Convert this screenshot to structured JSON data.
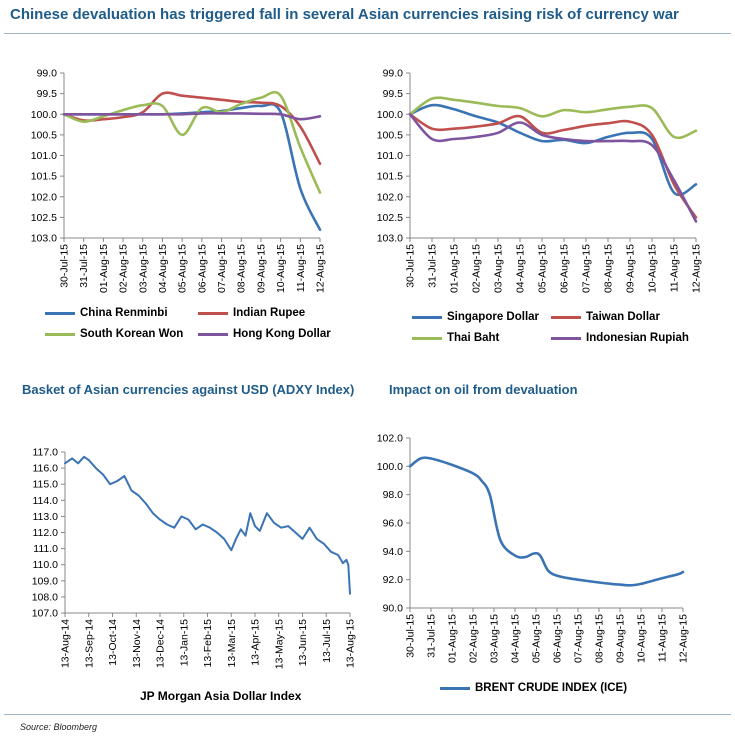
{
  "header": {
    "title": "Chinese devaluation has triggered fall in several Asian currencies raising risk of currency war"
  },
  "source": "Source: Bloomberg",
  "colors": {
    "blue": "#3a74b5",
    "red": "#c0504d",
    "green": "#9bbb59",
    "purple": "#7f549e",
    "title": "#1f5c8a"
  },
  "chart_data": [
    {
      "id": "asian-fx-1",
      "type": "line",
      "title": "",
      "y_inverted": true,
      "ylim": [
        99.0,
        103.0
      ],
      "yticks": [
        "99.0",
        "99.5",
        "100.0",
        "100.5",
        "101.0",
        "101.5",
        "102.0",
        "102.5",
        "103.0"
      ],
      "categories": [
        "30-Jul-15",
        "31-Jul-15",
        "01-Aug-15",
        "02-Aug-15",
        "03-Aug-15",
        "04-Aug-15",
        "05-Aug-15",
        "06-Aug-15",
        "07-Aug-15",
        "08-Aug-15",
        "09-Aug-15",
        "10-Aug-15",
        "11-Aug-15",
        "12-Aug-15"
      ],
      "series": [
        {
          "name": "China Renminbi",
          "color": "#3a74b5",
          "values": [
            100.0,
            100.0,
            100.0,
            100.0,
            100.0,
            100.0,
            99.98,
            99.95,
            99.92,
            99.85,
            99.8,
            99.95,
            101.8,
            102.8
          ]
        },
        {
          "name": "Indian Rupee",
          "color": "#c0504d",
          "values": [
            100.0,
            100.15,
            100.12,
            100.07,
            99.95,
            99.5,
            99.55,
            99.6,
            99.65,
            99.7,
            99.72,
            99.8,
            100.3,
            101.2
          ]
        },
        {
          "name": "South Korean Won",
          "color": "#9bbb59",
          "values": [
            100.0,
            100.18,
            100.05,
            99.9,
            99.78,
            99.8,
            100.5,
            99.85,
            99.95,
            99.75,
            99.6,
            99.55,
            100.8,
            101.9
          ]
        },
        {
          "name": "Hong Kong Dollar",
          "color": "#7f549e",
          "values": [
            100.0,
            100.0,
            100.0,
            100.0,
            100.0,
            100.0,
            100.0,
            99.98,
            99.98,
            99.98,
            99.99,
            100.0,
            100.12,
            100.05
          ]
        }
      ]
    },
    {
      "id": "asian-fx-2",
      "type": "line",
      "title": "",
      "y_inverted": true,
      "ylim": [
        99.0,
        103.0
      ],
      "yticks": [
        "99.0",
        "99.5",
        "100.0",
        "100.5",
        "101.0",
        "101.5",
        "102.0",
        "102.5",
        "103.0"
      ],
      "categories": [
        "30-Jul-15",
        "31-Jul-15",
        "01-Aug-15",
        "02-Aug-15",
        "03-Aug-15",
        "04-Aug-15",
        "05-Aug-15",
        "06-Aug-15",
        "07-Aug-15",
        "08-Aug-15",
        "09-Aug-15",
        "10-Aug-15",
        "11-Aug-15",
        "12-Aug-15"
      ],
      "series": [
        {
          "name": "Singapore Dollar",
          "color": "#3a74b5",
          "values": [
            100.0,
            99.78,
            99.88,
            100.05,
            100.2,
            100.45,
            100.65,
            100.62,
            100.7,
            100.55,
            100.45,
            100.6,
            101.9,
            101.7
          ]
        },
        {
          "name": "Taiwan Dollar",
          "color": "#c0504d",
          "values": [
            100.0,
            100.35,
            100.35,
            100.3,
            100.22,
            100.05,
            100.45,
            100.38,
            100.28,
            100.22,
            100.18,
            100.5,
            101.7,
            102.5
          ]
        },
        {
          "name": "Thai Baht",
          "color": "#9bbb59",
          "values": [
            100.0,
            99.62,
            99.65,
            99.72,
            99.8,
            99.85,
            100.05,
            99.9,
            99.95,
            99.88,
            99.82,
            99.85,
            100.55,
            100.4
          ]
        },
        {
          "name": "Indonesian Rupiah",
          "color": "#7f549e",
          "values": [
            100.0,
            100.6,
            100.6,
            100.55,
            100.45,
            100.2,
            100.5,
            100.6,
            100.65,
            100.65,
            100.65,
            100.75,
            101.6,
            102.6
          ]
        }
      ]
    },
    {
      "id": "adxy",
      "type": "line",
      "title": "Basket of Asian currencies against USD (ADXY Index)",
      "xlabel": "JP Morgan Asia Dollar Index",
      "ylim": [
        107.0,
        117.0
      ],
      "yticks": [
        "107.0",
        "108.0",
        "109.0",
        "110.0",
        "111.0",
        "112.0",
        "113.0",
        "114.0",
        "115.0",
        "116.0",
        "117.0"
      ],
      "xticks": [
        "13-Aug-14",
        "13-Sep-14",
        "13-Oct-14",
        "13-Nov-14",
        "13-Dec-14",
        "13-Jan-15",
        "13-Feb-15",
        "13-Mar-15",
        "13-Apr-15",
        "13-May-15",
        "13-Jun-15",
        "13-Jul-15",
        "13-Aug-15"
      ],
      "series": [
        {
          "name": "JP Morgan Asia Dollar Index",
          "color": "#3a74b5",
          "x": [
            0,
            0.3,
            0.55,
            0.8,
            1.0,
            1.3,
            1.6,
            1.9,
            2.2,
            2.5,
            2.8,
            3.1,
            3.4,
            3.7,
            4.0,
            4.3,
            4.6,
            4.9,
            5.2,
            5.5,
            5.8,
            6.1,
            6.4,
            6.7,
            7.0,
            7.2,
            7.4,
            7.6,
            7.8,
            8.0,
            8.2,
            8.5,
            8.8,
            9.1,
            9.4,
            9.7,
            10.0,
            10.3,
            10.6,
            10.9,
            11.2,
            11.5,
            11.7,
            11.85,
            11.93,
            12.0
          ],
          "values": [
            116.3,
            116.6,
            116.3,
            116.7,
            116.5,
            116.0,
            115.6,
            115.0,
            115.2,
            115.5,
            114.6,
            114.3,
            113.8,
            113.2,
            112.8,
            112.5,
            112.3,
            113.0,
            112.8,
            112.2,
            112.5,
            112.3,
            112.0,
            111.6,
            110.9,
            111.6,
            112.2,
            111.8,
            113.2,
            112.4,
            112.1,
            113.2,
            112.6,
            112.3,
            112.4,
            112.0,
            111.6,
            112.3,
            111.6,
            111.3,
            110.8,
            110.6,
            110.1,
            110.3,
            110.0,
            108.2
          ]
        }
      ]
    },
    {
      "id": "brent",
      "type": "line",
      "title": "Impact on oil from devaluation",
      "ylim": [
        90.0,
        102.0
      ],
      "yticks": [
        "90.0",
        "92.0",
        "94.0",
        "96.0",
        "98.0",
        "100.0",
        "102.0"
      ],
      "categories": [
        "30-Jul-15",
        "31-Jul-15",
        "01-Aug-15",
        "02-Aug-15",
        "03-Aug-15",
        "04-Aug-15",
        "05-Aug-15",
        "06-Aug-15",
        "07-Aug-15",
        "08-Aug-15",
        "09-Aug-15",
        "10-Aug-15",
        "11-Aug-15",
        "12-Aug-15"
      ],
      "series": [
        {
          "name": "BRENT CRUDE INDEX (ICE)",
          "color": "#3a74b5",
          "x": [
            0,
            0.5,
            1.0,
            2.0,
            3.0,
            3.4,
            3.8,
            4.3,
            5.0,
            5.5,
            5.9,
            6.2,
            6.6,
            7.2,
            8.0,
            9.0,
            9.6,
            10.0,
            10.5,
            11.0,
            12.0,
            12.8,
            13.0
          ],
          "values": [
            100.0,
            100.55,
            100.55,
            100.1,
            99.5,
            99.0,
            98.0,
            94.8,
            93.7,
            93.6,
            93.85,
            93.7,
            92.6,
            92.2,
            92.0,
            91.8,
            91.7,
            91.65,
            91.6,
            91.7,
            92.1,
            92.4,
            92.55
          ]
        }
      ]
    }
  ]
}
